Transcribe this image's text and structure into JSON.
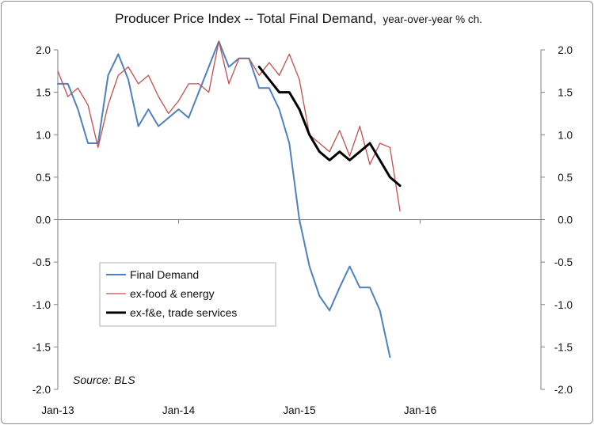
{
  "chart_data": {
    "type": "line",
    "title": "Producer Price Index -- Total Final Demand,",
    "subtitle": "year-over-year % ch.",
    "source": "Source: BLS",
    "x_labels": [
      "Jan-13",
      "Jan-14",
      "Jan-15",
      "Jan-16"
    ],
    "x_label_months": [
      0,
      12,
      24,
      36
    ],
    "x_range_months": [
      0,
      48
    ],
    "ylim": [
      -2.0,
      2.0
    ],
    "y_ticks": [
      "2.0",
      "1.5",
      "1.0",
      "0.5",
      "0.0",
      "-0.5",
      "-1.0",
      "-1.5",
      "-2.0"
    ],
    "y_tick_values": [
      2.0,
      1.5,
      1.0,
      0.5,
      0.0,
      -0.5,
      -1.0,
      -1.5,
      -2.0
    ],
    "grid": "none",
    "legend_position": "lower-left",
    "series": [
      {
        "name": "Final Demand",
        "color": "#4f81bd",
        "width": 2,
        "start_month": 0,
        "values": [
          1.6,
          1.6,
          1.3,
          0.9,
          0.9,
          1.7,
          1.95,
          1.65,
          1.1,
          1.3,
          1.1,
          1.2,
          1.3,
          1.2,
          1.5,
          1.8,
          2.1,
          1.8,
          1.9,
          1.9,
          1.55,
          1.55,
          1.3,
          0.9,
          0.0,
          -0.55,
          -0.9,
          -1.07,
          -0.8,
          -0.55,
          -0.8,
          -0.8,
          -1.07,
          -1.62
        ]
      },
      {
        "name": "ex-food & energy",
        "color": "#c0504d",
        "width": 1.3,
        "start_month": 0,
        "values": [
          1.75,
          1.45,
          1.55,
          1.35,
          0.85,
          1.35,
          1.7,
          1.8,
          1.6,
          1.7,
          1.45,
          1.25,
          1.4,
          1.6,
          1.6,
          1.5,
          2.1,
          1.6,
          1.9,
          1.9,
          1.7,
          1.85,
          1.7,
          1.95,
          1.65,
          1.0,
          0.9,
          0.8,
          1.05,
          0.75,
          1.1,
          0.65,
          0.9,
          0.85,
          0.1
        ]
      },
      {
        "name": "ex-f&e, trade services",
        "color": "#000000",
        "width": 3,
        "start_month": 20,
        "values": [
          1.8,
          1.65,
          1.5,
          1.5,
          1.3,
          1.0,
          0.8,
          0.7,
          0.8,
          0.7,
          0.8,
          0.9,
          0.7,
          0.5,
          0.4
        ]
      }
    ]
  }
}
